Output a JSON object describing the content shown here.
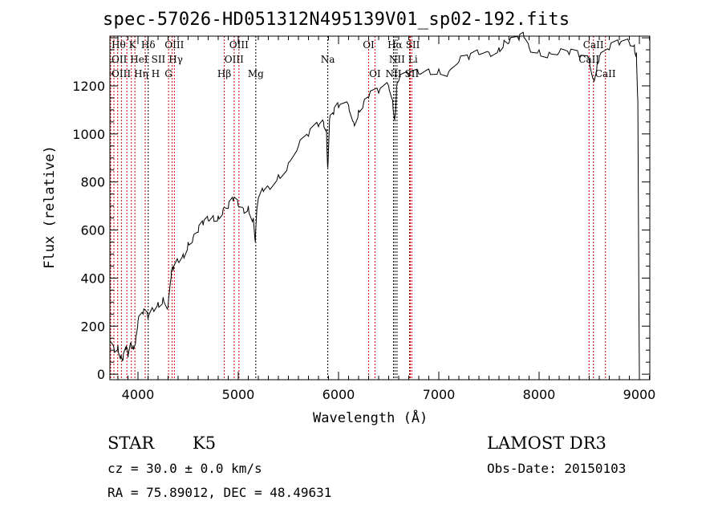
{
  "chart_data": {
    "type": "line",
    "title": "spec-57026-HD051312N495139V01_sp02-192.fits",
    "xlabel": "Wavelength (Å)",
    "ylabel": "Flux (relative)",
    "xlim": [
      3720,
      9104
    ],
    "ylim": [
      -23,
      1407
    ],
    "xticks": [
      4000,
      5000,
      6000,
      7000,
      8000,
      9000
    ],
    "yticks": [
      0,
      200,
      400,
      600,
      800,
      1000,
      1200
    ],
    "series": [
      {
        "name": "spectrum",
        "x": [
          3720,
          3760,
          3800,
          3830,
          3850,
          3880,
          3900,
          3930,
          3950,
          3980,
          4000,
          4050,
          4100,
          4150,
          4200,
          4250,
          4300,
          4330,
          4350,
          4400,
          4450,
          4500,
          4550,
          4600,
          4650,
          4700,
          4750,
          4800,
          4850,
          4900,
          4950,
          5000,
          5050,
          5100,
          5150,
          5170,
          5190,
          5250,
          5300,
          5400,
          5500,
          5600,
          5700,
          5800,
          5850,
          5880,
          5893,
          5910,
          5950,
          6000,
          6100,
          6150,
          6200,
          6250,
          6300,
          6400,
          6500,
          6540,
          6563,
          6580,
          6600,
          6700,
          6800,
          6900,
          7000,
          7100,
          7200,
          7300,
          7400,
          7500,
          7600,
          7650,
          7700,
          7800,
          7850,
          7900,
          8000,
          8100,
          8200,
          8300,
          8400,
          8500,
          8542,
          8580,
          8600,
          8700,
          8800,
          8900,
          8950,
          8970,
          8985,
          8995,
          9000
        ],
        "y": [
          140,
          110,
          120,
          80,
          60,
          100,
          70,
          130,
          120,
          160,
          220,
          250,
          230,
          270,
          300,
          320,
          280,
          400,
          430,
          470,
          500,
          550,
          570,
          590,
          620,
          640,
          660,
          660,
          690,
          690,
          720,
          700,
          690,
          700,
          650,
          550,
          700,
          760,
          780,
          830,
          880,
          950,
          990,
          1030,
          1050,
          1020,
          860,
          1060,
          1080,
          1110,
          1120,
          1050,
          1100,
          1130,
          1150,
          1170,
          1200,
          1140,
          1070,
          1200,
          1220,
          1240,
          1250,
          1270,
          1270,
          1260,
          1300,
          1310,
          1330,
          1340,
          1360,
          1390,
          1380,
          1390,
          1400,
          1360,
          1350,
          1340,
          1340,
          1330,
          1320,
          1310,
          1230,
          1300,
          1320,
          1350,
          1370,
          1380,
          1370,
          1340,
          1140,
          300,
          0
        ]
      }
    ],
    "lines": [
      {
        "label": "OII",
        "w": 3727,
        "row": 2,
        "color": "#c00000"
      },
      {
        "label": "Hθ",
        "w": 3798,
        "row": 1,
        "color": "#c00000"
      },
      {
        "label": "OIII",
        "w": 3760,
        "row": 3,
        "color": "#c00000"
      },
      {
        "label": "Hη",
        "w": 3835,
        "row": 3,
        "color": "#c00000"
      },
      {
        "label": "HeI",
        "w": 3889,
        "row": 2,
        "color": "#c00000"
      },
      {
        "label": "K",
        "w": 3934,
        "row": 1,
        "color": "#c00000"
      },
      {
        "label": "H",
        "w": 3969,
        "row": 3,
        "color": "#c00000"
      },
      {
        "label": "SII",
        "w": 4072,
        "row": 2,
        "color": "#c00000"
      },
      {
        "label": "Hδ",
        "w": 4102,
        "row": 1,
        "color": "#000000"
      },
      {
        "label": "G",
        "w": 4305,
        "row": 3,
        "color": "#c00000"
      },
      {
        "label": "Hγ",
        "w": 4340,
        "row": 2,
        "color": "#c00000"
      },
      {
        "label": "OIII",
        "w": 4363,
        "row": 1,
        "color": "#c00000"
      },
      {
        "label": "Hβ",
        "w": 4861,
        "row": 3,
        "color": "#c00000"
      },
      {
        "label": "OIII",
        "w": 4959,
        "row": 2,
        "color": "#c00000"
      },
      {
        "label": "OIII",
        "w": 5007,
        "row": 1,
        "color": "#c00000"
      },
      {
        "label": "Mg",
        "w": 5175,
        "row": 3,
        "color": "#000000"
      },
      {
        "label": "Na",
        "w": 5893,
        "row": 2,
        "color": "#000000"
      },
      {
        "label": "OI",
        "w": 6300,
        "row": 1,
        "color": "#c00000"
      },
      {
        "label": "OI",
        "w": 6363,
        "row": 3,
        "color": "#c00000"
      },
      {
        "label": "NII",
        "w": 6548,
        "row": 3,
        "color": "#000000"
      },
      {
        "label": "Hα",
        "w": 6563,
        "row": 1,
        "color": "#000000"
      },
      {
        "label": "NII",
        "w": 6583,
        "row": 2,
        "color": "#000000"
      },
      {
        "label": "Li",
        "w": 6708,
        "row": 2,
        "color": "#c00000"
      },
      {
        "label": "SII",
        "w": 6716,
        "row": 1,
        "color": "#c00000"
      },
      {
        "label": "SII",
        "w": 6731,
        "row": 3,
        "color": "#c00000"
      },
      {
        "label": "CaII",
        "w": 8498,
        "row": 2,
        "color": "#c00000"
      },
      {
        "label": "CaII",
        "w": 8542,
        "row": 1,
        "color": "#c00000"
      },
      {
        "label": "CaII",
        "w": 8662,
        "row": 3,
        "color": "#c00000"
      }
    ]
  },
  "info": {
    "class": "STAR",
    "subclass": "K5",
    "survey": "LAMOST DR3",
    "cz": "cz = 30.0 ± 0.0 km/s",
    "obs_date": "Obs-Date: 20150103",
    "radec": "RA =  75.89012, DEC =  48.49631"
  }
}
